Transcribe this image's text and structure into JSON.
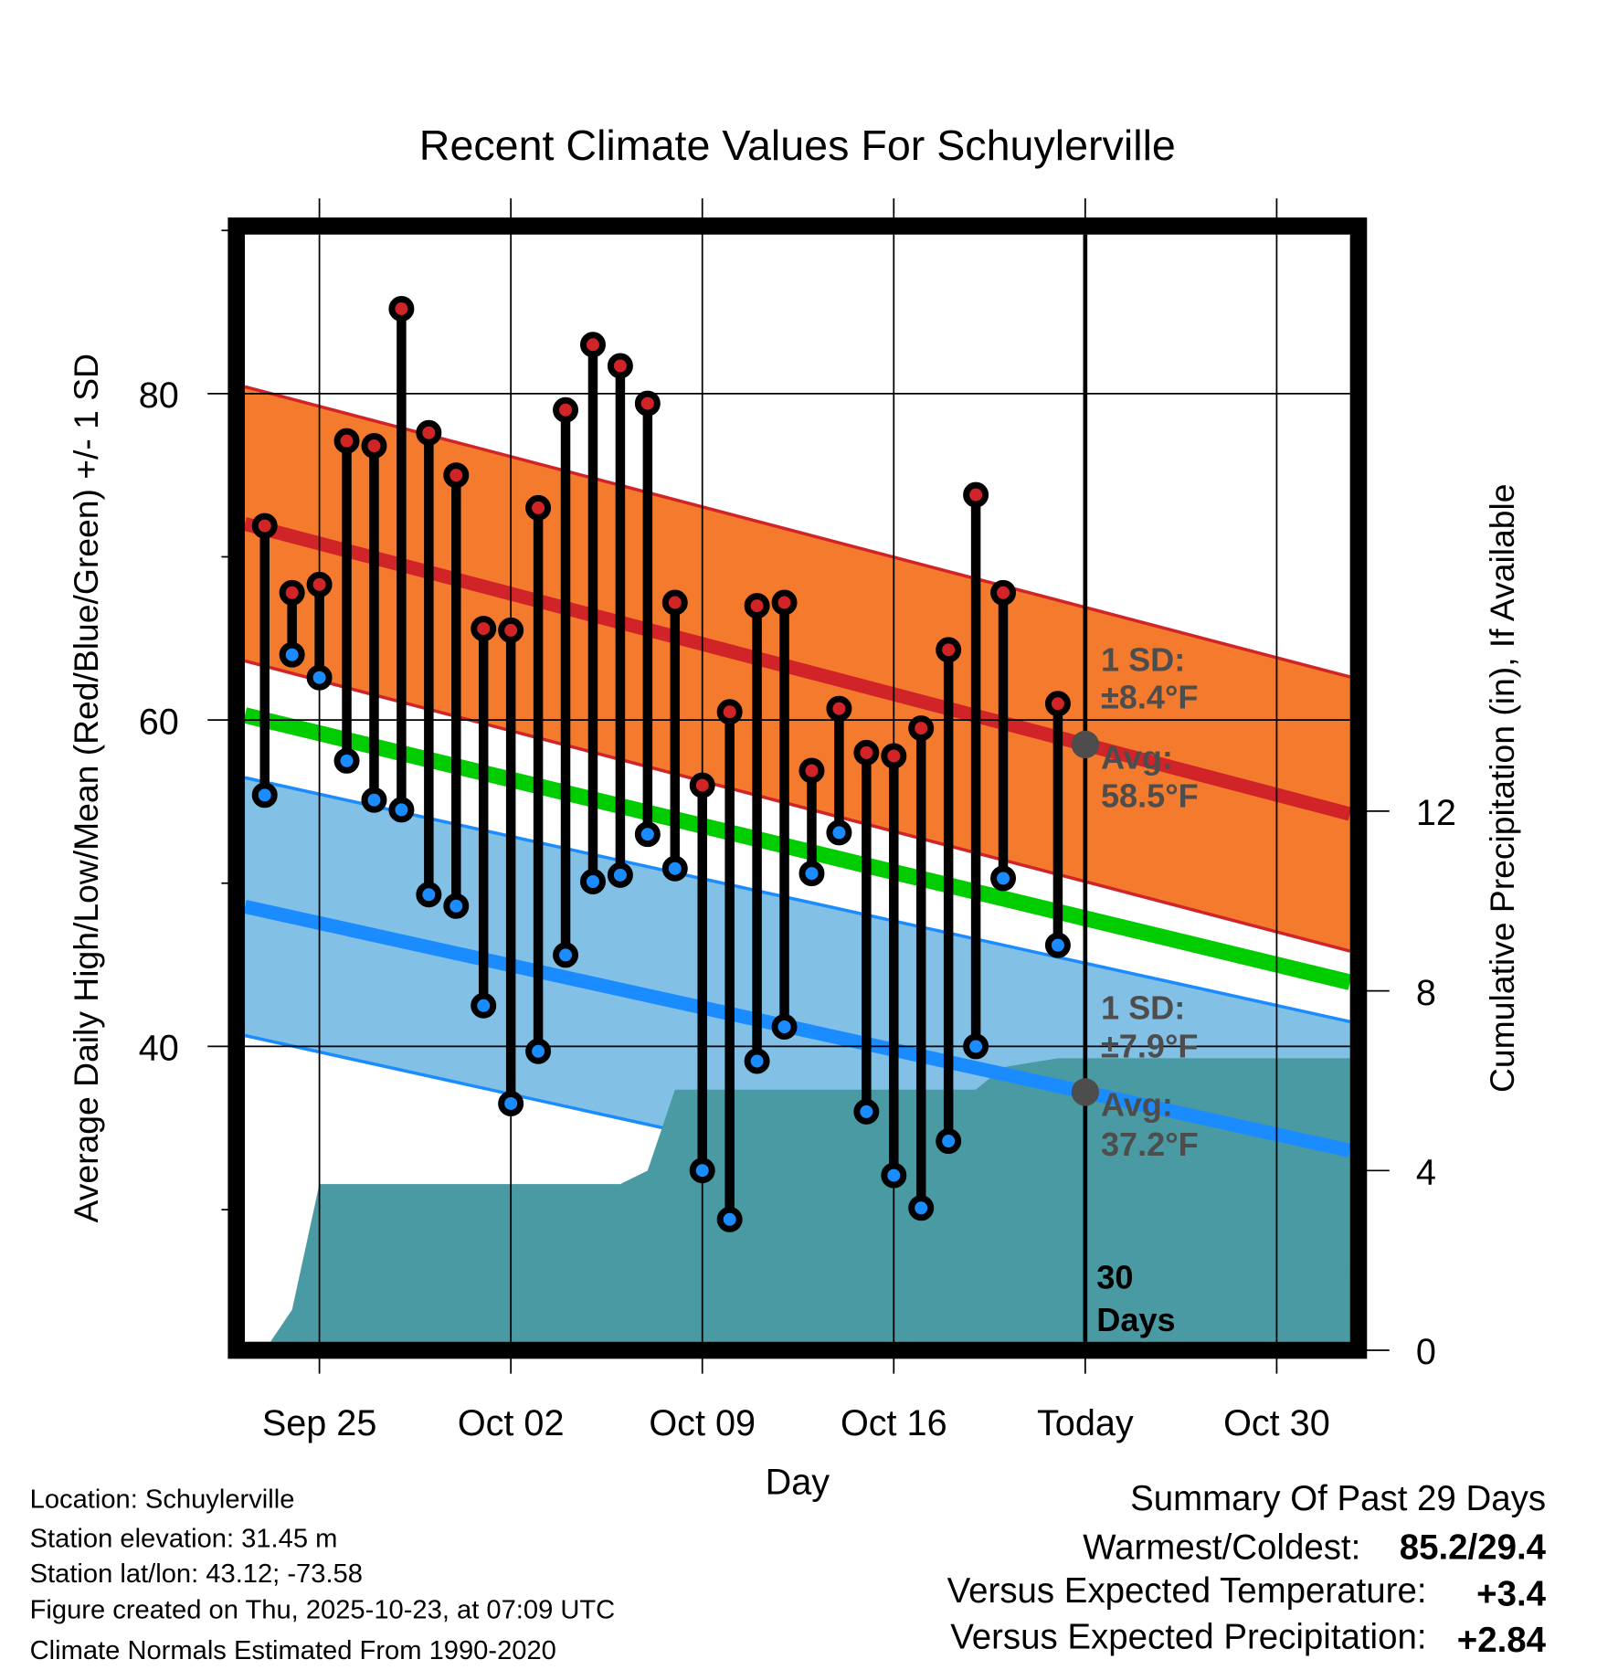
{
  "chart_data": {
    "type": "line",
    "title": "Recent Climate Values For Schuylerville",
    "xlabel": "Day",
    "ylabel": "Average Daily High/Low/Mean (Red/Blue/Green) +/- 1 SD",
    "y2label": "Cumulative Precipitation (in), If Available",
    "ylim": [
      21.9,
      89.7
    ],
    "y2lim": [
      0,
      16
    ],
    "yticks": [
      "80",
      "60",
      "40"
    ],
    "y2ticks": [
      "12",
      "8",
      "4",
      "0"
    ],
    "xticks": [
      "Sep 25",
      "Oct 02",
      "Oct 09",
      "Oct 16",
      "Today",
      "Oct 30"
    ],
    "dates": [
      "Sep 23",
      "Sep 24",
      "Sep 25",
      "Sep 26",
      "Sep 27",
      "Sep 28",
      "Sep 29",
      "Sep 30",
      "Oct 01",
      "Oct 02",
      "Oct 03",
      "Oct 04",
      "Oct 05",
      "Oct 06",
      "Oct 07",
      "Oct 08",
      "Oct 09",
      "Oct 10",
      "Oct 11",
      "Oct 12",
      "Oct 13",
      "Oct 14",
      "Oct 15",
      "Oct 16",
      "Oct 17",
      "Oct 18",
      "Oct 19",
      "Oct 20",
      "Oct 21",
      "Oct 22"
    ],
    "series": [
      {
        "name": "Daily High",
        "color": "#d02428",
        "values": [
          71.9,
          67.8,
          68.3,
          77.1,
          76.8,
          85.2,
          77.6,
          75.0,
          65.6,
          65.5,
          73.0,
          79.0,
          83.0,
          81.7,
          79.4,
          67.2,
          56.0,
          60.5,
          67.0,
          67.2,
          56.9,
          60.7,
          58.0,
          57.8,
          59.5,
          64.3,
          73.8,
          67.8,
          null,
          61.0
        ]
      },
      {
        "name": "Daily Low",
        "color": "#1a8cff",
        "values": [
          55.4,
          64.0,
          62.6,
          57.5,
          55.1,
          54.5,
          49.3,
          48.6,
          42.5,
          36.5,
          39.7,
          45.6,
          50.1,
          50.5,
          53.0,
          50.9,
          32.4,
          29.4,
          39.1,
          41.2,
          50.6,
          53.1,
          36.0,
          32.1,
          30.1,
          34.2,
          40.0,
          50.3,
          null,
          46.2
        ]
      },
      {
        "name": "Cumulative Precipitation (in)",
        "color": "#4a9aa3",
        "values": [
          0.0,
          0.9,
          3.7,
          3.7,
          3.7,
          3.7,
          3.7,
          3.7,
          3.7,
          3.7,
          3.7,
          3.7,
          3.7,
          3.7,
          4.0,
          5.8,
          5.8,
          5.8,
          5.8,
          5.8,
          5.8,
          5.8,
          5.8,
          5.8,
          5.8,
          5.8,
          5.8,
          6.3,
          6.4,
          6.5
        ]
      }
    ],
    "normals": {
      "avg_high_start": 72.0,
      "avg_high_today": 58.5,
      "high_sd": 8.4,
      "avg_low_start": 48.6,
      "avg_low_today": 37.2,
      "low_sd": 7.9,
      "slope_high_per_day": -0.44,
      "slope_low_per_day": -0.37
    },
    "annotations": {
      "high_sd": "1 SD:",
      "high_sd_val": "±8.4°F",
      "high_avg": "Avg:",
      "high_avg_val": "58.5°F",
      "low_sd": "1 SD:",
      "low_sd_val": "±7.9°F",
      "low_avg": "Avg:",
      "low_avg_val": "37.2°F",
      "days_num": "30",
      "days_word": "Days"
    }
  },
  "footer": {
    "location": "Location: Schuylerville",
    "elevation": "Station elevation: 31.45 m",
    "latlon": "Station lat/lon: 43.12; -73.58",
    "created": "Figure created on Thu, 2025-10-23, at 07:09 UTC",
    "normals": "Climate Normals Estimated From 1990-2020"
  },
  "summary": {
    "title": "Summary Of Past 29 Days",
    "warm_label": "Warmest/Coldest:",
    "warm_value": "85.2/29.4",
    "temp_label": "Versus Expected Temperature:",
    "temp_value": "+3.4",
    "precip_label": "Versus Expected Precipitation:",
    "precip_value": "+2.84",
    "colors": {
      "temp": "#d02428",
      "precip": "#1ec81e"
    }
  }
}
